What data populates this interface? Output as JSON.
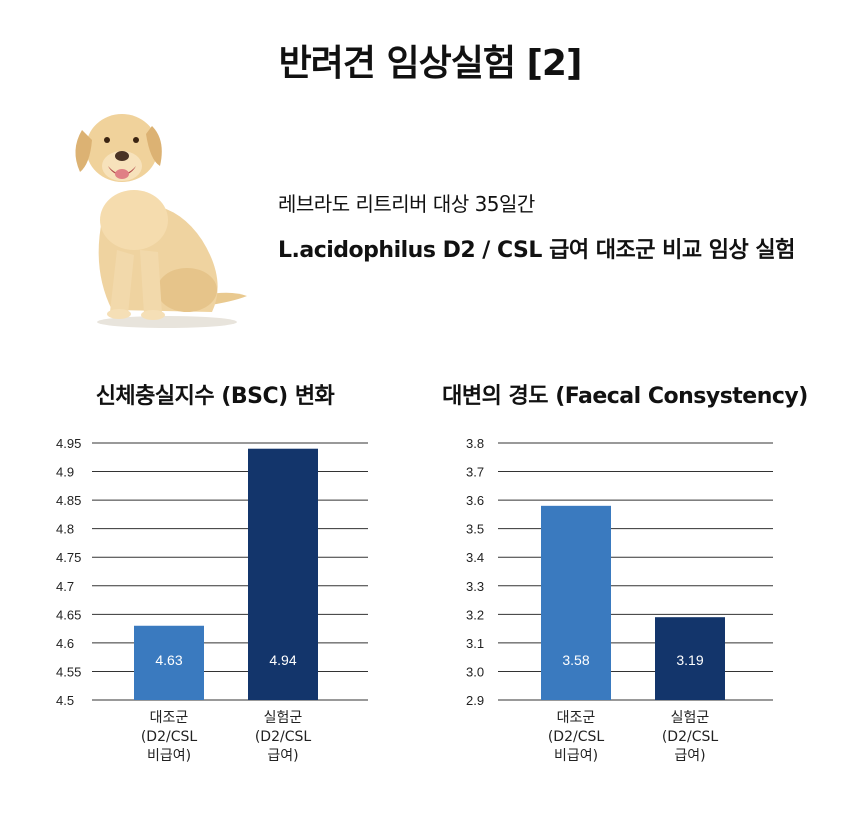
{
  "header": {
    "title": "반려견 임상실험 [2]",
    "subtitle_line1": "레브라도 리트리버 대상 35일간",
    "subtitle_line2": "L.acidophilus D2 / CSL 급여 대조군 비교 임상 실험"
  },
  "colors": {
    "control": "#3a7abf",
    "treatment": "#13356b",
    "grid": "#333333"
  },
  "chart_data": [
    {
      "type": "bar",
      "title": "신체충실지수 (BSC) 변화",
      "categories": [
        [
          "대조군",
          "(D2/CSL",
          "비급여)"
        ],
        [
          "실험군",
          "(D2/CSL",
          "급여)"
        ]
      ],
      "values": [
        4.63,
        4.94
      ],
      "value_labels": [
        "4.63",
        "4.94"
      ],
      "yticks": [
        "4.5",
        "4.55",
        "4.6",
        "4.65",
        "4.7",
        "4.75",
        "4.8",
        "4.85",
        "4.9",
        "4.95"
      ],
      "ylim": [
        4.5,
        4.95
      ],
      "grid": true
    },
    {
      "type": "bar",
      "title": "대변의 경도 (Faecal Consystency)",
      "categories": [
        [
          "대조군",
          "(D2/CSL",
          "비급여)"
        ],
        [
          "실험군",
          "(D2/CSL",
          "급여)"
        ]
      ],
      "values": [
        3.58,
        3.19
      ],
      "value_labels": [
        "3.58",
        "3.19"
      ],
      "yticks": [
        "2.9",
        "3.0",
        "3.1",
        "3.2",
        "3.3",
        "3.4",
        "3.5",
        "3.6",
        "3.7",
        "3.8"
      ],
      "ylim": [
        2.9,
        3.8
      ],
      "grid": true
    }
  ]
}
